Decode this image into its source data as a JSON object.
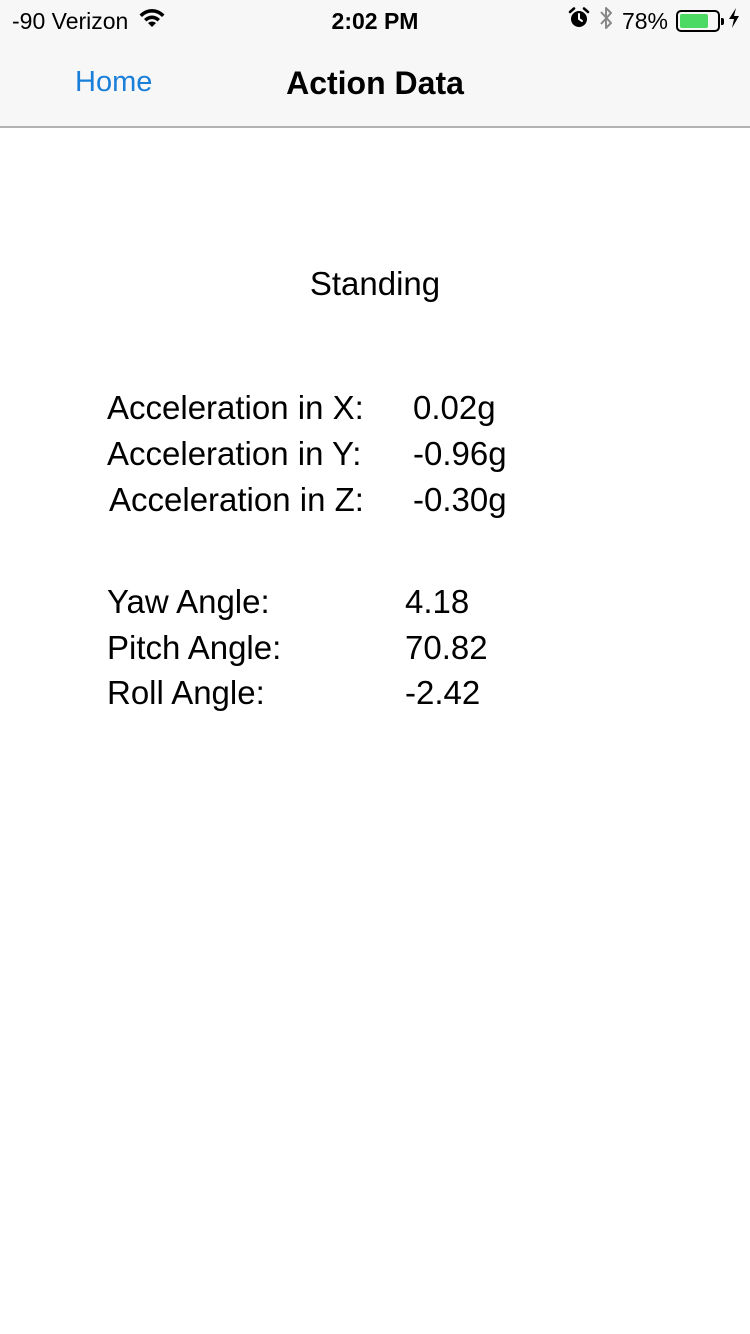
{
  "status_bar": {
    "carrier": "-90 Verizon",
    "time": "2:02 PM",
    "battery_percent": "78%",
    "battery_level": 0.78,
    "icons": [
      "wifi-icon",
      "alarm-icon",
      "bluetooth-icon",
      "battery-icon",
      "charging-bolt-icon"
    ]
  },
  "nav": {
    "back_label": "Home",
    "title": "Action Data"
  },
  "activity": "Standing",
  "acceleration": [
    {
      "label": "Acceleration in X:",
      "value": "0.02g"
    },
    {
      "label": "Acceleration in Y:",
      "value": "-0.96g"
    },
    {
      "label": "Acceleration in Z:",
      "value": "-0.30g"
    }
  ],
  "angles": [
    {
      "label": "Yaw Angle:",
      "value": "4.18"
    },
    {
      "label": "Pitch Angle:",
      "value": "70.82"
    },
    {
      "label": "Roll Angle:",
      "value": "-2.42"
    }
  ],
  "colors": {
    "tint": "#1a7fd9",
    "battery_fill": "#4cd964",
    "nav_background": "#f7f7f7"
  }
}
